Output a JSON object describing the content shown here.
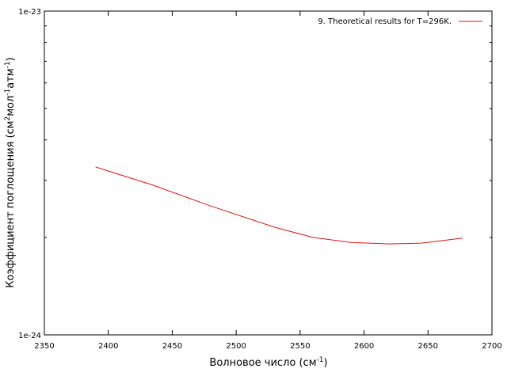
{
  "chart_data": {
    "type": "line",
    "title": "",
    "xlabel": "Волновое число (см⁻¹)",
    "xlabel_base": "Волновое число (см",
    "xlabel_sup": "-1",
    "xlabel_end": ")",
    "ylabel": "Коэффициент поглощения (см²мол⁻¹атм⁻¹)",
    "ylabel_parts": [
      {
        "t": "Коэффициент поглощения (см",
        "sup": false
      },
      {
        "t": "2",
        "sup": true
      },
      {
        "t": "мол",
        "sup": false
      },
      {
        "t": "-1",
        "sup": true
      },
      {
        "t": "атм",
        "sup": false
      },
      {
        "t": "-1",
        "sup": true
      },
      {
        "t": ")",
        "sup": false
      }
    ],
    "xlim": [
      2350,
      2700
    ],
    "ylim": [
      1e-24,
      1e-23
    ],
    "yscale": "log",
    "xticks": [
      2350,
      2400,
      2450,
      2500,
      2550,
      2600,
      2650,
      2700
    ],
    "yticks": [
      {
        "value": 1e-24,
        "label": "1e-24"
      },
      {
        "value": 1e-23,
        "label": "1e-23"
      }
    ],
    "legend_position": "top-right",
    "series": [
      {
        "name": "9. Theoretical results for T=296K.",
        "color": "#e8110f",
        "x": [
          2390,
          2435,
          2480,
          2530,
          2560,
          2590,
          2620,
          2645,
          2677
        ],
        "y": [
          3.3e-24,
          2.9e-24,
          2.5e-24,
          2.15e-24,
          2e-24,
          1.93e-24,
          1.91e-24,
          1.92e-24,
          1.99e-24
        ]
      }
    ]
  }
}
